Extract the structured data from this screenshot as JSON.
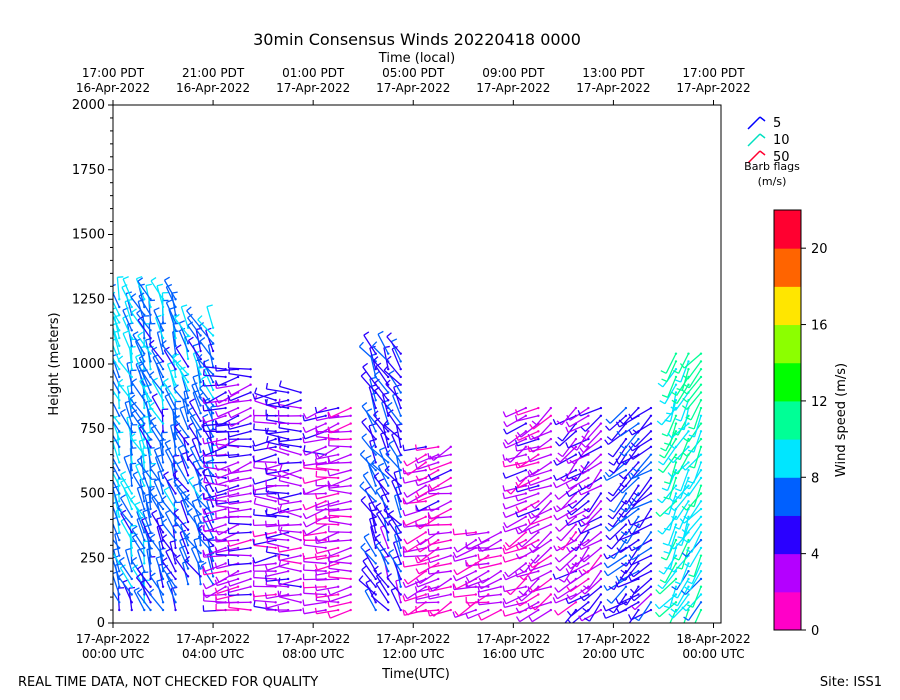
{
  "chart_data": {
    "type": "wind-barb",
    "title": "30min Consensus Winds 20220418 0000",
    "top_axis_label": "Time (local)",
    "xlabel": "Time(UTC)",
    "ylabel": "Height (meters)",
    "ylim": [
      0,
      2000
    ],
    "xlim_hours": [
      0,
      24.3
    ],
    "y_ticks": [
      0,
      250,
      500,
      750,
      1000,
      1250,
      1500,
      1750,
      2000
    ],
    "x_ticks": [
      {
        "h": 0,
        "line1": "17-Apr-2022",
        "line2": "00:00 UTC"
      },
      {
        "h": 4,
        "line1": "17-Apr-2022",
        "line2": "04:00 UTC"
      },
      {
        "h": 8,
        "line1": "17-Apr-2022",
        "line2": "08:00 UTC"
      },
      {
        "h": 12,
        "line1": "17-Apr-2022",
        "line2": "12:00 UTC"
      },
      {
        "h": 16,
        "line1": "17-Apr-2022",
        "line2": "16:00 UTC"
      },
      {
        "h": 20,
        "line1": "17-Apr-2022",
        "line2": "20:00 UTC"
      },
      {
        "h": 24,
        "line1": "18-Apr-2022",
        "line2": "00:00 UTC"
      }
    ],
    "top_ticks": [
      {
        "h": 0,
        "line1": "17:00 PDT",
        "line2": "16-Apr-2022"
      },
      {
        "h": 4,
        "line1": "21:00 PDT",
        "line2": "16-Apr-2022"
      },
      {
        "h": 8,
        "line1": "01:00 PDT",
        "line2": "17-Apr-2022"
      },
      {
        "h": 12,
        "line1": "05:00 PDT",
        "line2": "17-Apr-2022"
      },
      {
        "h": 16,
        "line1": "09:00 PDT",
        "line2": "17-Apr-2022"
      },
      {
        "h": 20,
        "line1": "13:00 PDT",
        "line2": "17-Apr-2022"
      },
      {
        "h": 24,
        "line1": "17:00 PDT",
        "line2": "17-Apr-2022"
      }
    ],
    "legend": {
      "items": [
        {
          "label": "5",
          "color": "#0000ff"
        },
        {
          "label": "10",
          "color": "#00e0c0"
        },
        {
          "label": "50",
          "color": "#ff0030"
        }
      ],
      "caption_line1": "Barb flags",
      "caption_line2": "(m/s)"
    },
    "colorbar": {
      "label": "Wind speed (m/s)",
      "min": 0,
      "max": 22,
      "ticks": [
        0,
        4,
        8,
        12,
        16,
        20
      ],
      "bin_colors": [
        "#ff00c8",
        "#b400ff",
        "#2a00ff",
        "#0060ff",
        "#00e6ff",
        "#00ff96",
        "#00ff00",
        "#8cff00",
        "#ffe600",
        "#ff6400",
        "#ff0030"
      ]
    },
    "columns": [
      {
        "h": 0.25,
        "top": 1260,
        "bottom": 50,
        "dir_deg": 340,
        "speed": 7
      },
      {
        "h": 1.5,
        "top": 1250,
        "bottom": 50,
        "dir_deg": 340,
        "speed": 6
      },
      {
        "h": 3.0,
        "top": 1150,
        "bottom": 150,
        "dir_deg": 335,
        "speed": 6
      },
      {
        "h": 4.5,
        "top": 1000,
        "bottom": 50,
        "dir_deg": 260,
        "speed": 3
      },
      {
        "h": 6.5,
        "top": 900,
        "bottom": 50,
        "dir_deg": 270,
        "speed": 3
      },
      {
        "h": 8.5,
        "top": 850,
        "bottom": 50,
        "dir_deg": 260,
        "speed": 2
      },
      {
        "h": 10.5,
        "top": 1050,
        "bottom": 50,
        "dir_deg": 330,
        "speed": 5
      },
      {
        "h": 12.5,
        "top": 700,
        "bottom": 50,
        "dir_deg": 250,
        "speed": 2
      },
      {
        "h": 14.5,
        "top": 350,
        "bottom": 50,
        "dir_deg": 250,
        "speed": 2
      },
      {
        "h": 16.5,
        "top": 850,
        "bottom": 50,
        "dir_deg": 240,
        "speed": 2
      },
      {
        "h": 18.5,
        "top": 850,
        "bottom": 50,
        "dir_deg": 230,
        "speed": 3
      },
      {
        "h": 20.5,
        "top": 850,
        "bottom": 50,
        "dir_deg": 230,
        "speed": 5
      },
      {
        "h": 22.5,
        "top": 1050,
        "bottom": 50,
        "dir_deg": 210,
        "speed": 9
      }
    ],
    "footer_left": "REAL TIME DATA, NOT CHECKED FOR QUALITY",
    "footer_right": "Site: ISS1"
  }
}
